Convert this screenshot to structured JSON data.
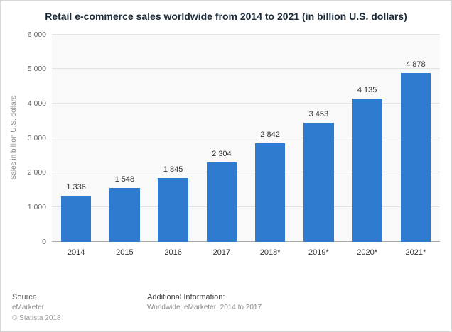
{
  "title": "Retail e-commerce sales worldwide from 2014 to 2021 (in billion U.S. dollars)",
  "footer": {
    "source_label": "Source",
    "source_name": "eMarketer",
    "copyright": "© Statista 2018",
    "additional_label": "Additional Information:",
    "additional_text": "Worldwide; eMarketer; 2014 to 2017"
  },
  "chart_data": {
    "type": "bar",
    "title": "Retail e-commerce sales worldwide from 2014 to 2021 (in billion U.S. dollars)",
    "categories": [
      "2014",
      "2015",
      "2016",
      "2017",
      "2018*",
      "2019*",
      "2020*",
      "2021*"
    ],
    "values": [
      1336,
      1548,
      1845,
      2304,
      2842,
      3453,
      4135,
      4878
    ],
    "value_labels": [
      "1 336",
      "1 548",
      "1 845",
      "2 304",
      "2 842",
      "3 453",
      "4 135",
      "4 878"
    ],
    "xlabel": "",
    "ylabel": "Sales in billion U.S. dollars",
    "ylim": [
      0,
      6000
    ],
    "ytick_step": 1000,
    "ytick_labels": [
      "0",
      "1 000",
      "2 000",
      "3 000",
      "4 000",
      "5 000",
      "6 000"
    ],
    "bar_color": "#2e7bd0",
    "grid": true,
    "legend_position": "none"
  }
}
